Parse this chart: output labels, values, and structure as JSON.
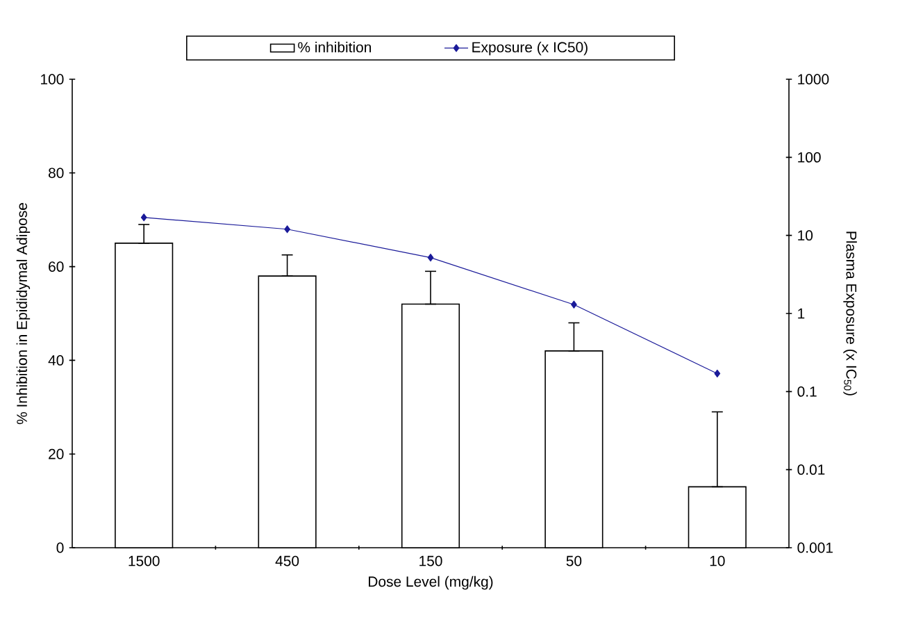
{
  "chart_data": {
    "type": "bar",
    "xlabel": "Dose Level (mg/kg)",
    "ylabel": "% Inhibition in Epididymal Adipose",
    "y2label": "Plasma Exposure (x IC$_{50}$)",
    "categories": [
      "1500",
      "450",
      "150",
      "50",
      "10"
    ],
    "series": [
      {
        "name": "% inhibition",
        "color": "#ffffff",
        "values": [
          65,
          58,
          52,
          42,
          13
        ],
        "errors": [
          [
            65,
            69
          ],
          [
            58,
            62.5
          ],
          [
            52,
            59
          ],
          [
            42,
            48
          ],
          [
            13,
            29
          ]
        ]
      },
      {
        "name": "Exposure (x IC50)",
        "type": "line",
        "axis": "y2",
        "color": "#1a1a99",
        "marker": "diamond",
        "values": [
          17,
          12,
          5.2,
          1.3,
          0.17
        ]
      }
    ],
    "ylim": [
      0,
      100
    ],
    "yticks": [
      0,
      20,
      40,
      60,
      80,
      100
    ],
    "y2lim": [
      0.001,
      1000
    ],
    "y2ticks": [
      0.001,
      0.01,
      0.1,
      1,
      10,
      100,
      1000
    ],
    "log": "y2",
    "legend": "top"
  }
}
